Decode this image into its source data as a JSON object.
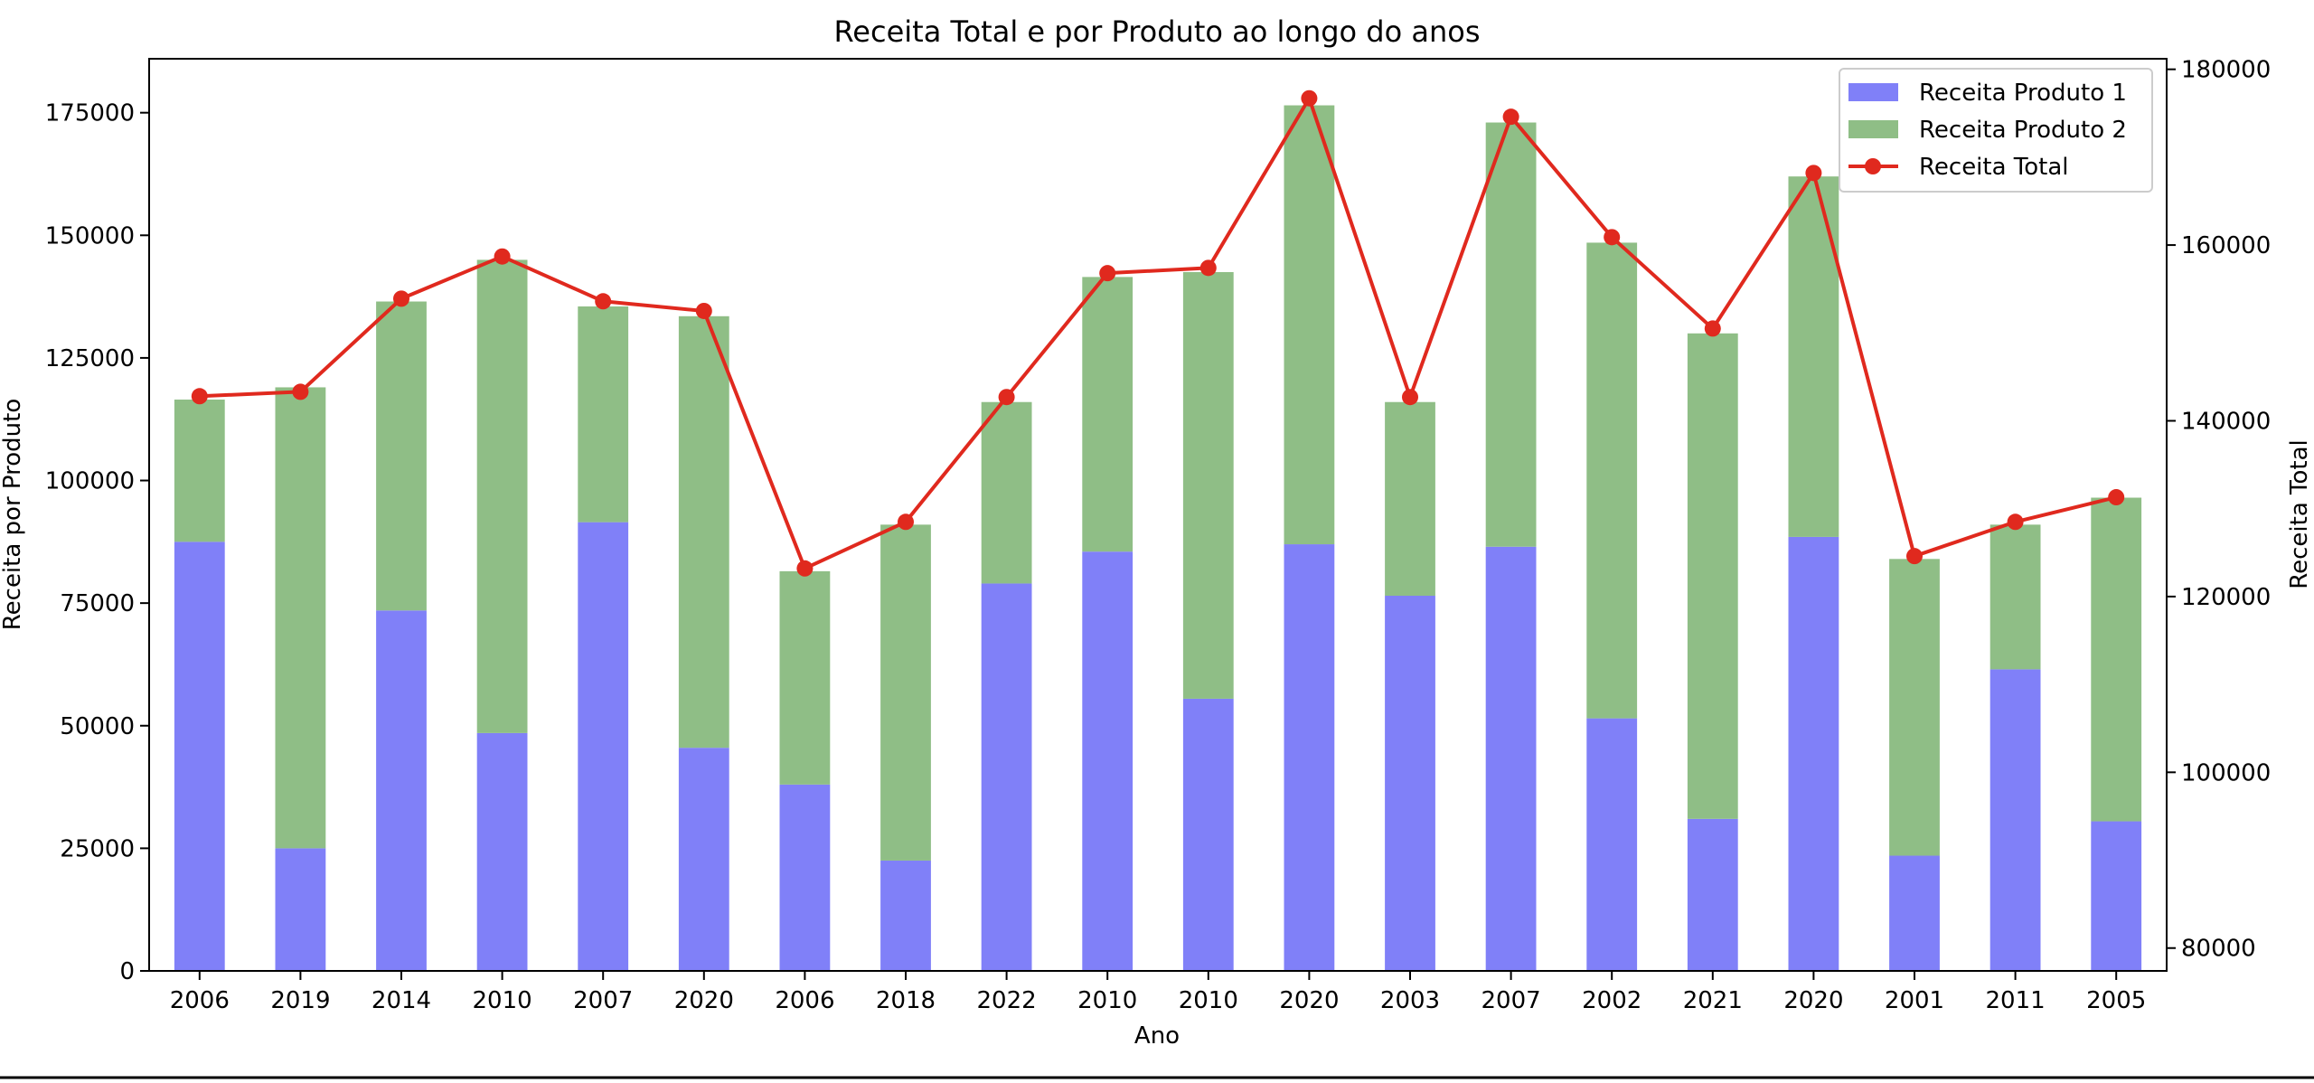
{
  "chart_data": {
    "type": "bar",
    "title": "Receita Total e por Produto ao longo do anos",
    "xlabel": "Ano",
    "ylabel": "Receita por Produto",
    "y2label": "Receita Total",
    "stacked": true,
    "categories": [
      "2006",
      "2019",
      "2014",
      "2010",
      "2007",
      "2020",
      "2006",
      "2018",
      "2022",
      "2010",
      "2010",
      "2020",
      "2003",
      "2007",
      "2002",
      "2021",
      "2020",
      "2001",
      "2011",
      "2005"
    ],
    "series": [
      {
        "name": "Receita Produto 1",
        "type": "bar",
        "axis": "left",
        "color": "#8080f8",
        "values": [
          87500,
          25000,
          73500,
          48500,
          91500,
          45500,
          38000,
          22500,
          79000,
          85500,
          55500,
          87000,
          76500,
          86500,
          51500,
          31000,
          88500,
          23500,
          61500,
          30500
        ]
      },
      {
        "name": "Receita Produto 2",
        "type": "bar",
        "axis": "left",
        "color": "#8fbe86",
        "values": [
          29000,
          94000,
          63000,
          96500,
          44000,
          88000,
          43500,
          68500,
          37000,
          56000,
          87000,
          89500,
          39500,
          86500,
          97000,
          99000,
          73500,
          60500,
          29500,
          66000
        ]
      },
      {
        "name": "Receita Total",
        "type": "line",
        "axis": "right",
        "color": "#e0291e",
        "values": [
          142800,
          143300,
          153900,
          158700,
          153600,
          152500,
          123200,
          128500,
          142700,
          156800,
          157400,
          176700,
          142700,
          174600,
          160900,
          150500,
          168200,
          124600,
          128500,
          131300
        ]
      }
    ],
    "ylim": [
      0,
      186000
    ],
    "yticks": [
      0,
      25000,
      50000,
      75000,
      100000,
      125000,
      150000,
      175000
    ],
    "y2lim": [
      77400,
      181200
    ],
    "y2ticks": [
      80000,
      100000,
      120000,
      140000,
      160000,
      180000
    ],
    "legend": "top-right",
    "grid": false
  }
}
